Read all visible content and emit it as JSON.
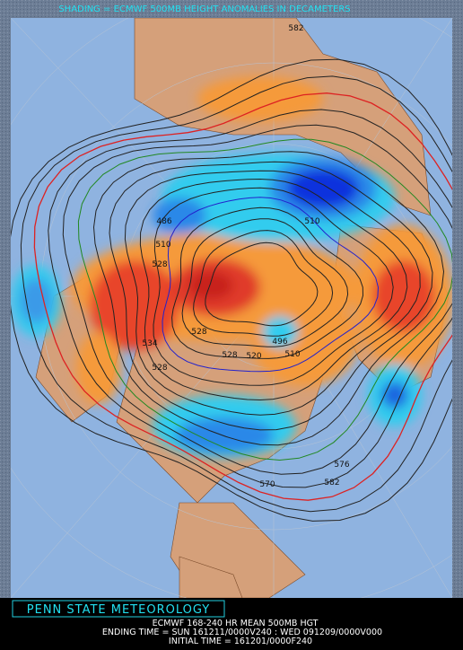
{
  "header": {
    "title": "SHADING = ECMWF 500MB HEIGHT ANOMALIES IN DECAMETERS"
  },
  "map": {
    "contour_labels": [
      "582",
      "510",
      "486",
      "510",
      "528",
      "528",
      "534",
      "528",
      "528",
      "520",
      "496",
      "510",
      "576",
      "582",
      "570"
    ]
  },
  "footer": {
    "brand": "PENN STATE METEOROLOGY",
    "lines": [
      "ECMWF 168-240 HR MEAN 500MB HGT",
      "ENDING TIME = SUN 161211/0000V240 : WED 091209/0000V000",
      "INITIAL TIME = 161201/0000F240"
    ]
  }
}
